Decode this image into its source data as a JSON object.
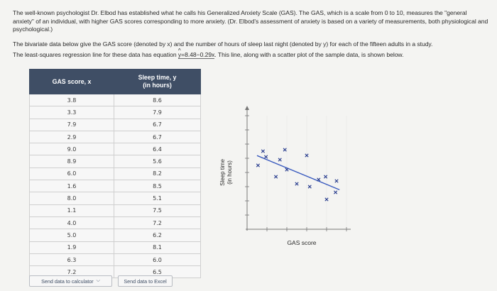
{
  "intro": {
    "p1": "The well-known psychologist Dr. Elbod has established what he calls his Generalized Anxiety Scale (GAS). The GAS, which is a scale from 0 to 10, measures the \"general anxiety\" of an individual, with higher GAS scores corresponding to more anxiety. (Dr. Elbod's assessment of anxiety is based on a variety of measurements, both physiological and psychological.)",
    "p2": "The bivariate data below give the GAS score (denoted by x) and the number of hours of sleep last night (denoted by y) for each of the fifteen adults in a study.",
    "p3_before": "The least-squares regression line for these data has equation ",
    "yhat": "y",
    "hat": "^",
    "equation": "=8.48−0.29x",
    "p3_after": ". This line, along with a scatter plot of the sample data, is shown below."
  },
  "table": {
    "col1_header": "GAS score, x",
    "col2_header_line1": "Sleep time, y",
    "col2_header_line2": "(in hours)",
    "rows": [
      [
        "3.8",
        "8.6"
      ],
      [
        "3.3",
        "7.9"
      ],
      [
        "7.9",
        "6.7"
      ],
      [
        "2.9",
        "6.7"
      ],
      [
        "9.0",
        "6.4"
      ],
      [
        "8.9",
        "5.6"
      ],
      [
        "6.0",
        "8.2"
      ],
      [
        "1.6",
        "8.5"
      ],
      [
        "8.0",
        "5.1"
      ],
      [
        "1.1",
        "7.5"
      ],
      [
        "4.0",
        "7.2"
      ],
      [
        "5.0",
        "6.2"
      ],
      [
        "1.9",
        "8.1"
      ],
      [
        "6.3",
        "6.0"
      ],
      [
        "7.2",
        "6.5"
      ]
    ]
  },
  "buttons": {
    "calculator": "Send data to calculator",
    "excel": "Send data to Excel"
  },
  "chart_data": {
    "type": "scatter",
    "xlabel": "GAS score",
    "ylabel_line1": "Sleep time",
    "ylabel_line2": "(in hours)",
    "x": [
      3.8,
      3.3,
      7.9,
      2.9,
      9.0,
      8.9,
      6.0,
      1.6,
      8.0,
      1.1,
      4.0,
      5.0,
      1.9,
      6.3,
      7.2
    ],
    "y": [
      8.6,
      7.9,
      6.7,
      6.7,
      6.4,
      5.6,
      8.2,
      8.5,
      5.1,
      7.5,
      7.2,
      6.2,
      8.1,
      6.0,
      6.5
    ],
    "regression": {
      "intercept": 8.48,
      "slope": -0.29
    },
    "xlim": [
      0,
      10
    ],
    "ylim": [
      3,
      11
    ],
    "marker": "x",
    "colors": {
      "points": "#2b3f8f",
      "line": "#3a5bbf",
      "axis": "#777777"
    }
  },
  "colors": {
    "header_bg": "#3f4e65",
    "background": "#f4f4f2"
  }
}
